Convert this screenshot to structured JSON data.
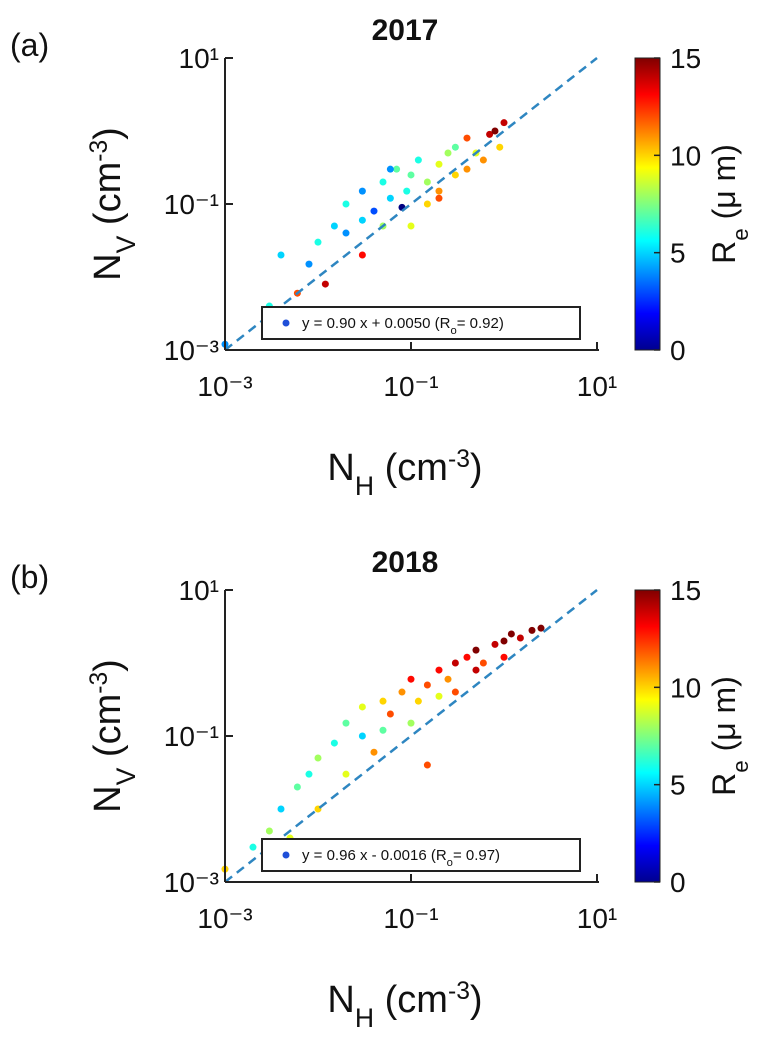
{
  "chart_data": [
    {
      "type": "scatter",
      "title": "2017",
      "panel_label": "(a)",
      "xlabel": {
        "main": "N",
        "sub": "H",
        "rest": " (cm",
        "sup": "-3",
        "end": ")"
      },
      "ylabel": {
        "main": "N",
        "sub": "V",
        "rest": " (cm",
        "sup": "-3",
        "end": ")"
      },
      "colorbar_label": {
        "main": "R",
        "sub": "e",
        "rest": " (μ m)"
      },
      "log_x": true,
      "log_y": true,
      "xlim": [
        0.001,
        10
      ],
      "ylim": [
        0.001,
        10
      ],
      "xticks": [
        {
          "value": 0.001,
          "label": "10⁻³"
        },
        {
          "value": 0.1,
          "label": "10⁻¹"
        },
        {
          "value": 10,
          "label": "10¹"
        }
      ],
      "yticks": [
        {
          "value": 0.001,
          "label": "10⁻³"
        },
        {
          "value": 0.1,
          "label": "10⁻¹"
        },
        {
          "value": 10,
          "label": "10¹"
        }
      ],
      "clim": [
        0,
        15
      ],
      "cticks": [
        0,
        5,
        10,
        15
      ],
      "colormap": "jet",
      "legend": {
        "text": "y = 0.90 x + 0.0050 (R",
        "sub": "o",
        "end": "= 0.92)",
        "color": "#1f4fd8"
      },
      "legend_loc": "lower right",
      "fit_color": "#2e86c1",
      "x": [
        0.001,
        0.003,
        0.004,
        0.006,
        0.008,
        0.01,
        0.012,
        0.015,
        0.02,
        0.02,
        0.03,
        0.03,
        0.04,
        0.05,
        0.05,
        0.06,
        0.07,
        0.08,
        0.09,
        0.1,
        0.1,
        0.12,
        0.15,
        0.15,
        0.2,
        0.2,
        0.25,
        0.3,
        0.3,
        0.4,
        0.4,
        0.5,
        0.6,
        0.7,
        0.8,
        0.9,
        1,
        0.03,
        0.06,
        0.2
      ],
      "values": [
        0.0012,
        0.004,
        0.02,
        0.006,
        0.015,
        0.03,
        0.008,
        0.05,
        0.04,
        0.1,
        0.06,
        0.15,
        0.08,
        0.2,
        0.05,
        0.12,
        0.3,
        0.09,
        0.15,
        0.25,
        0.05,
        0.4,
        0.1,
        0.2,
        0.35,
        0.15,
        0.5,
        0.25,
        0.6,
        0.3,
        0.8,
        0.5,
        0.4,
        0.9,
        1,
        0.6,
        1.3,
        0.02,
        0.3,
        0.12
      ],
      "c": [
        4,
        6,
        5,
        12,
        4,
        6,
        14,
        5,
        4,
        6,
        5,
        4,
        3,
        6,
        8,
        5,
        7,
        0,
        6,
        7,
        9,
        6,
        10,
        8,
        9,
        11,
        8,
        10,
        7,
        11,
        12,
        9,
        11,
        14,
        15,
        10,
        14,
        13,
        4,
        12
      ]
    },
    {
      "type": "scatter",
      "title": "2018",
      "panel_label": "(b)",
      "xlabel": {
        "main": "N",
        "sub": "H",
        "rest": " (cm",
        "sup": "-3",
        "end": ")"
      },
      "ylabel": {
        "main": "N",
        "sub": "V",
        "rest": " (cm",
        "sup": "-3",
        "end": ")"
      },
      "colorbar_label": {
        "main": "R",
        "sub": "e",
        "rest": " (μ m)"
      },
      "log_x": true,
      "log_y": true,
      "xlim": [
        0.001,
        10
      ],
      "ylim": [
        0.001,
        10
      ],
      "xticks": [
        {
          "value": 0.001,
          "label": "10⁻³"
        },
        {
          "value": 0.1,
          "label": "10⁻¹"
        },
        {
          "value": 10,
          "label": "10¹"
        }
      ],
      "yticks": [
        {
          "value": 0.001,
          "label": "10⁻³"
        },
        {
          "value": 0.1,
          "label": "10⁻¹"
        },
        {
          "value": 10,
          "label": "10¹"
        }
      ],
      "clim": [
        0,
        15
      ],
      "cticks": [
        0,
        5,
        10,
        15
      ],
      "colormap": "jet",
      "legend": {
        "text": "y = 0.96 x - 0.0016 (R",
        "sub": "o",
        "end": "= 0.97)",
        "color": "#1f4fd8"
      },
      "legend_loc": "lower right",
      "fit_color": "#2e86c1",
      "x": [
        0.001,
        0.002,
        0.003,
        0.004,
        0.005,
        0.006,
        0.008,
        0.01,
        0.01,
        0.015,
        0.02,
        0.02,
        0.03,
        0.03,
        0.04,
        0.05,
        0.05,
        0.06,
        0.08,
        0.1,
        0.1,
        0.12,
        0.15,
        0.2,
        0.2,
        0.25,
        0.3,
        0.3,
        0.4,
        0.5,
        0.5,
        0.6,
        0.8,
        1,
        1,
        1.2,
        1.5,
        2,
        2.5,
        0.15
      ],
      "values": [
        0.0015,
        0.003,
        0.005,
        0.01,
        0.004,
        0.02,
        0.03,
        0.01,
        0.05,
        0.08,
        0.03,
        0.15,
        0.1,
        0.25,
        0.06,
        0.3,
        0.12,
        0.2,
        0.4,
        0.15,
        0.6,
        0.3,
        0.5,
        0.35,
        0.8,
        0.6,
        1,
        0.4,
        1.2,
        0.8,
        1.5,
        1,
        1.8,
        2,
        1.2,
        2.5,
        2.2,
        2.8,
        3,
        0.04
      ],
      "c": [
        10,
        6,
        8,
        5,
        9,
        7,
        6,
        10,
        8,
        6,
        9,
        7,
        5,
        9,
        11,
        10,
        7,
        12,
        11,
        8,
        13,
        10,
        12,
        9,
        13,
        11,
        14,
        12,
        13,
        14,
        15,
        12,
        14,
        15,
        13,
        15,
        14,
        15,
        15,
        12
      ]
    }
  ]
}
